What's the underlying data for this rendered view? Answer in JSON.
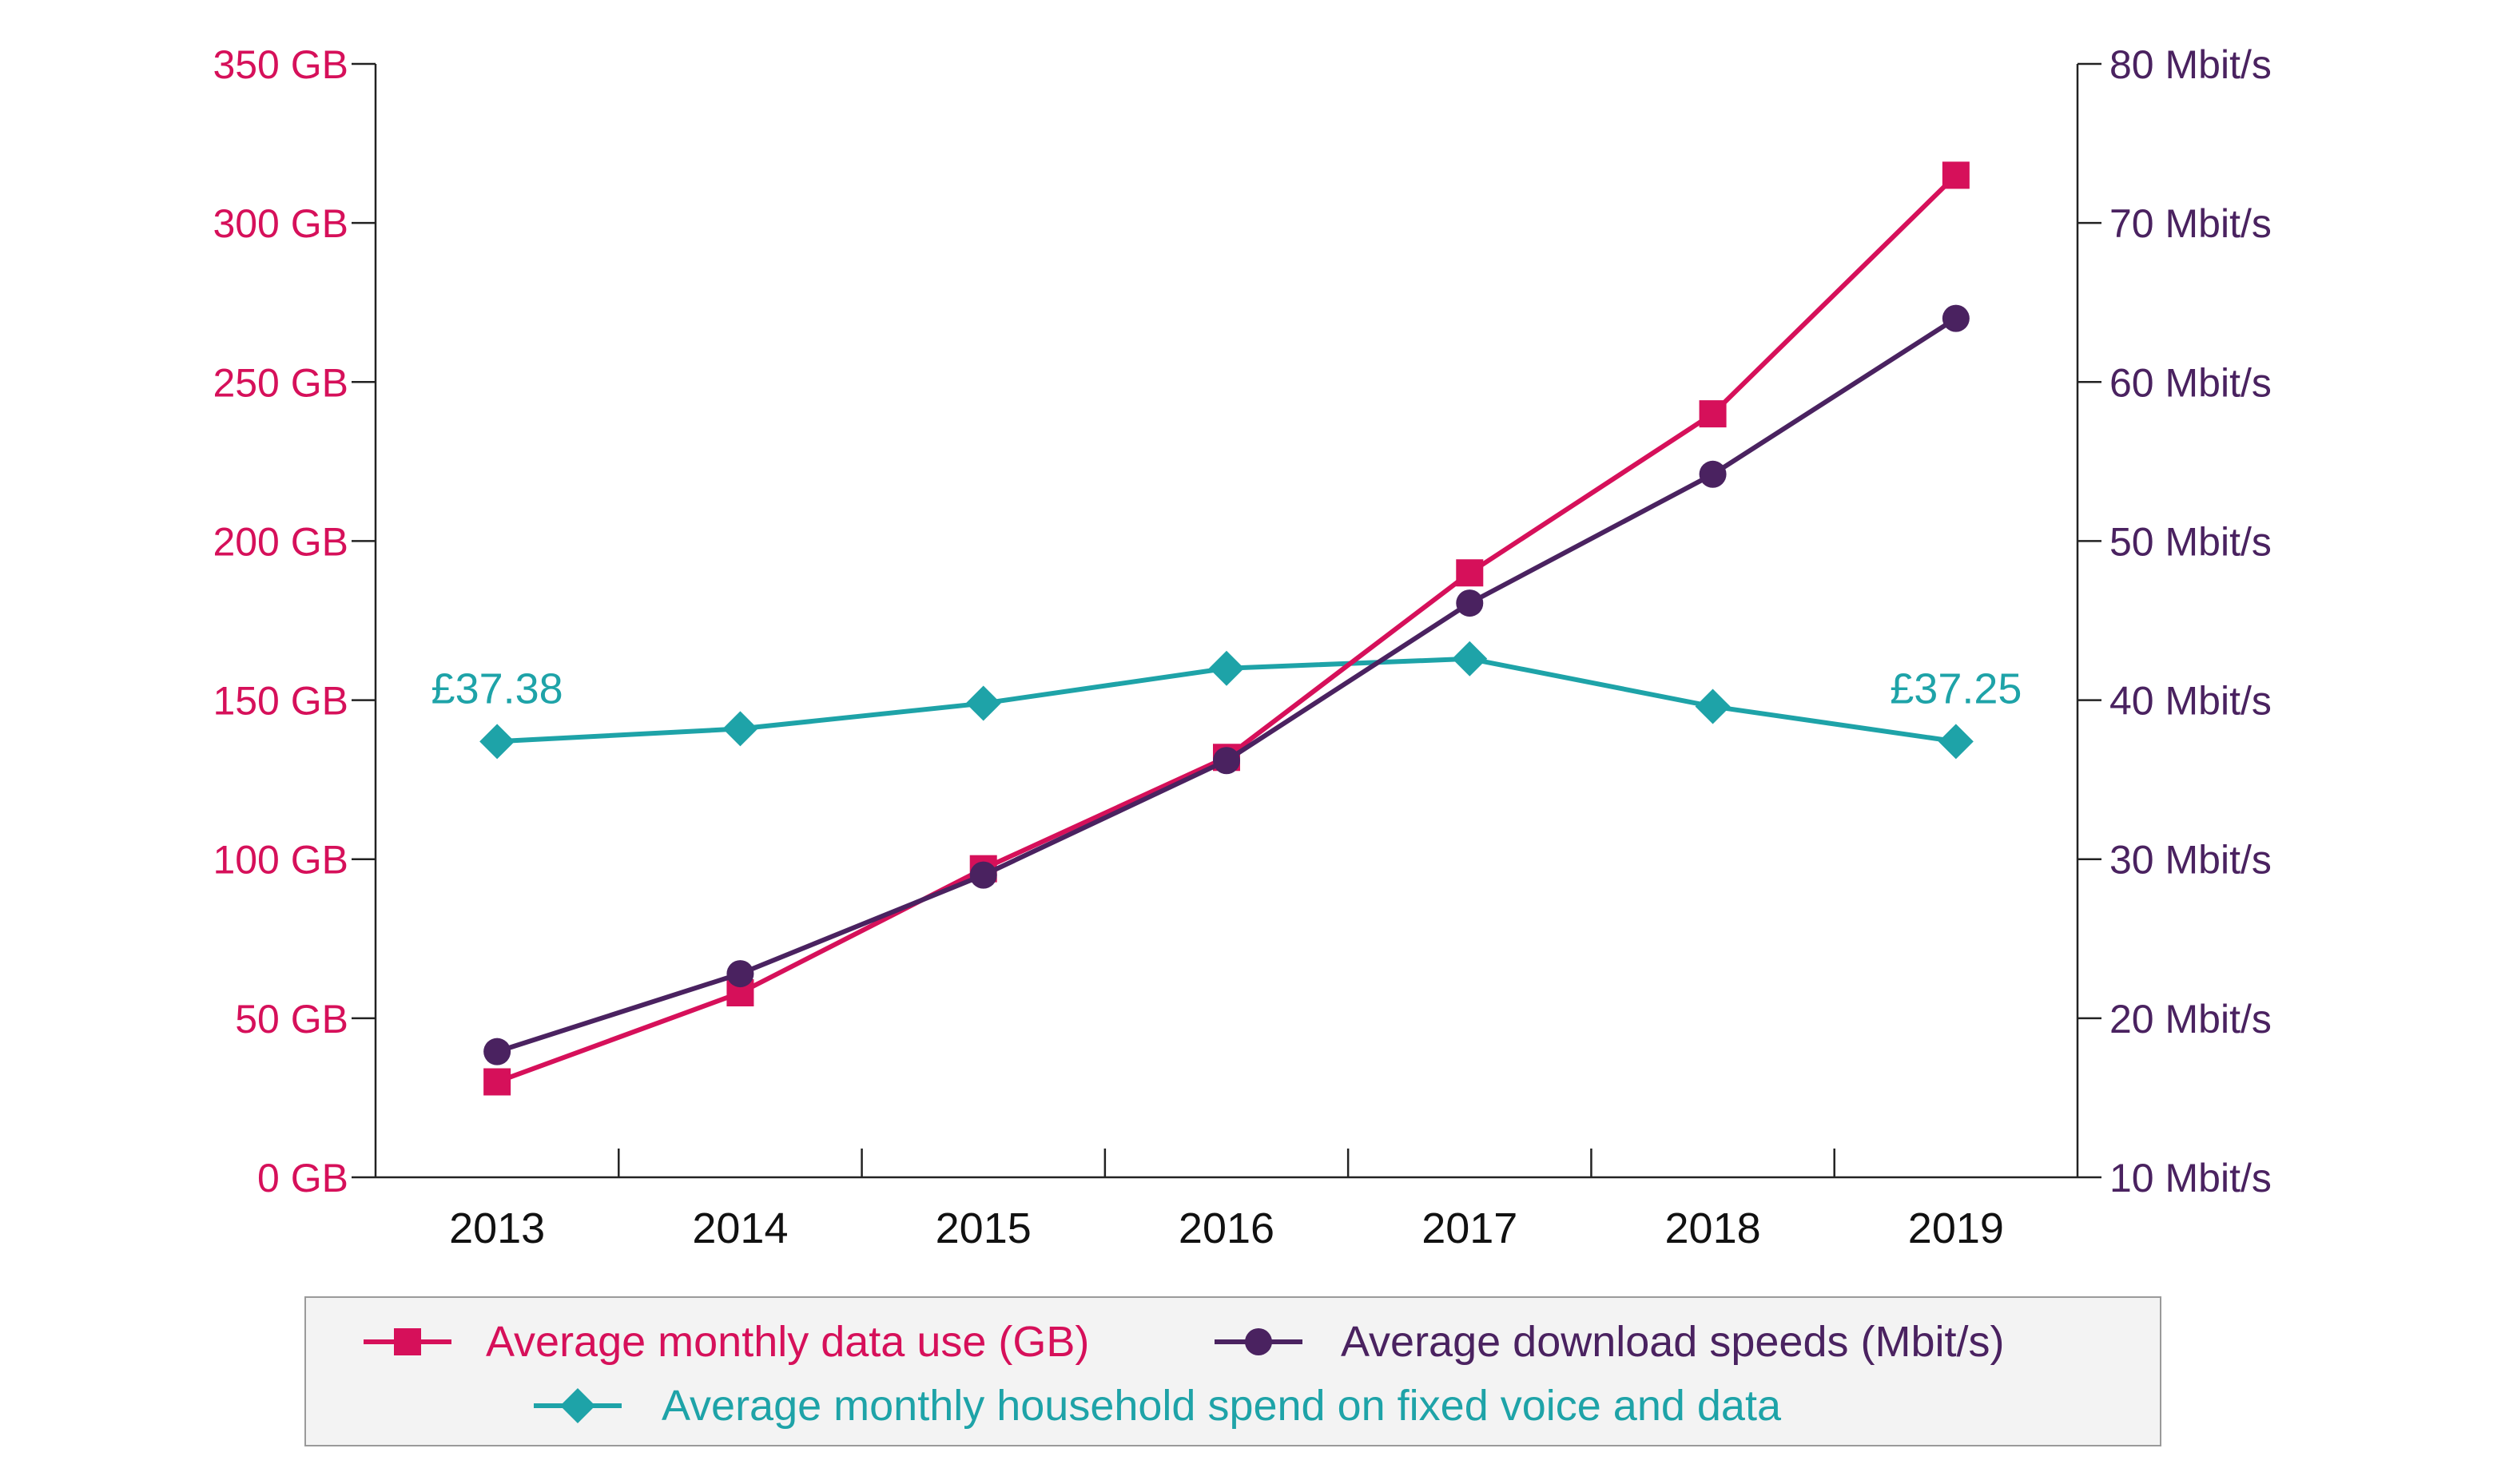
{
  "chart_data": {
    "type": "line",
    "title": "",
    "categories": [
      "2013",
      "2014",
      "2015",
      "2016",
      "2017",
      "2018",
      "2019"
    ],
    "left_axis": {
      "unit": "GB",
      "ylim": [
        0,
        350
      ],
      "tick_labels": [
        "0 GB",
        "50 GB",
        "100 GB",
        "150 GB",
        "200 GB",
        "250 GB",
        "300 GB",
        "350 GB"
      ],
      "tick_values": [
        0,
        50,
        100,
        150,
        200,
        250,
        300,
        350
      ],
      "color": "#d6105a"
    },
    "right_axis": {
      "unit": "Mbit/s",
      "ylim": [
        10,
        80
      ],
      "tick_labels": [
        "10 Mbit/s",
        "20 Mbit/s",
        "30  Mbit/s",
        "40 Mbit/s",
        "50 Mbit/s",
        "60 Mbit/s",
        "70 Mbit/s",
        "80 Mbit/s"
      ],
      "tick_values": [
        10,
        20,
        30,
        40,
        50,
        60,
        70,
        80
      ],
      "color": "#4a2260"
    },
    "series": [
      {
        "name": "Average monthly data use (GB)",
        "axis": "left",
        "marker": "square",
        "color": "#d6105a",
        "values": [
          30,
          58,
          97,
          132,
          190,
          240,
          315
        ]
      },
      {
        "name": "Average download speeds (Mbit/s)",
        "axis": "right",
        "marker": "circle",
        "color": "#4a2260",
        "values": [
          17.9,
          22.8,
          29.0,
          36.2,
          46.1,
          54.2,
          64.0
        ]
      },
      {
        "name": "Average monthly household spend on fixed voice and data",
        "axis": "left",
        "scale_note": "plotted on left axis scale (index)",
        "marker": "diamond",
        "color": "#1ea3a8",
        "values": [
          137,
          141,
          149,
          160,
          163,
          148,
          137
        ]
      }
    ],
    "annotations": [
      {
        "text": "£37.38",
        "category": "2013",
        "series": 2
      },
      {
        "text": "£37.25",
        "category": "2019",
        "series": 2
      }
    ],
    "legend": {
      "position": "bottom",
      "items": [
        "Average monthly data use (GB)",
        "Average download speeds (Mbit/s)",
        "Average monthly household spend on fixed voice and data"
      ]
    },
    "grid": false
  }
}
